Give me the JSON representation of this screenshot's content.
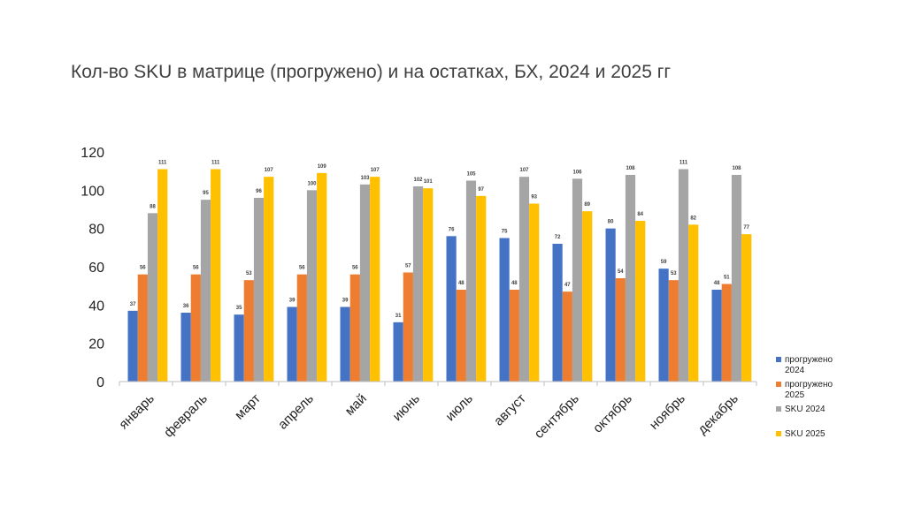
{
  "chart_data": {
    "type": "bar",
    "title": "Кол-во SKU в матрице (прогружено) и на остатках, БХ, 2024 и 2025 гг",
    "categories": [
      "январь",
      "февраль",
      "март",
      "апрель",
      "май",
      "июнь",
      "июль",
      "август",
      "сентябрь",
      "октябрь",
      "ноябрь",
      "декабрь"
    ],
    "series": [
      {
        "name": "прогружено 2024",
        "color": "#4472C4",
        "values": [
          37,
          36,
          35,
          39,
          39,
          31,
          76,
          75,
          72,
          80,
          59,
          48
        ]
      },
      {
        "name": "прогружено 2025",
        "color": "#ED7D31",
        "values": [
          56,
          56,
          53,
          56,
          56,
          57,
          48,
          48,
          47,
          54,
          53,
          51
        ]
      },
      {
        "name": "SKU 2024",
        "color": "#A5A5A5",
        "values": [
          88,
          95,
          96,
          100,
          103,
          102,
          105,
          107,
          106,
          108,
          111,
          108
        ]
      },
      {
        "name": "SKU 2025",
        "color": "#FFC000",
        "values": [
          111,
          111,
          107,
          109,
          107,
          101,
          97,
          93,
          89,
          84,
          82,
          77
        ]
      }
    ],
    "ylim": [
      0,
      120
    ],
    "yticks": [
      0,
      20,
      40,
      60,
      80,
      100,
      120
    ],
    "grid": false,
    "legend": "right",
    "data_labels": true
  }
}
